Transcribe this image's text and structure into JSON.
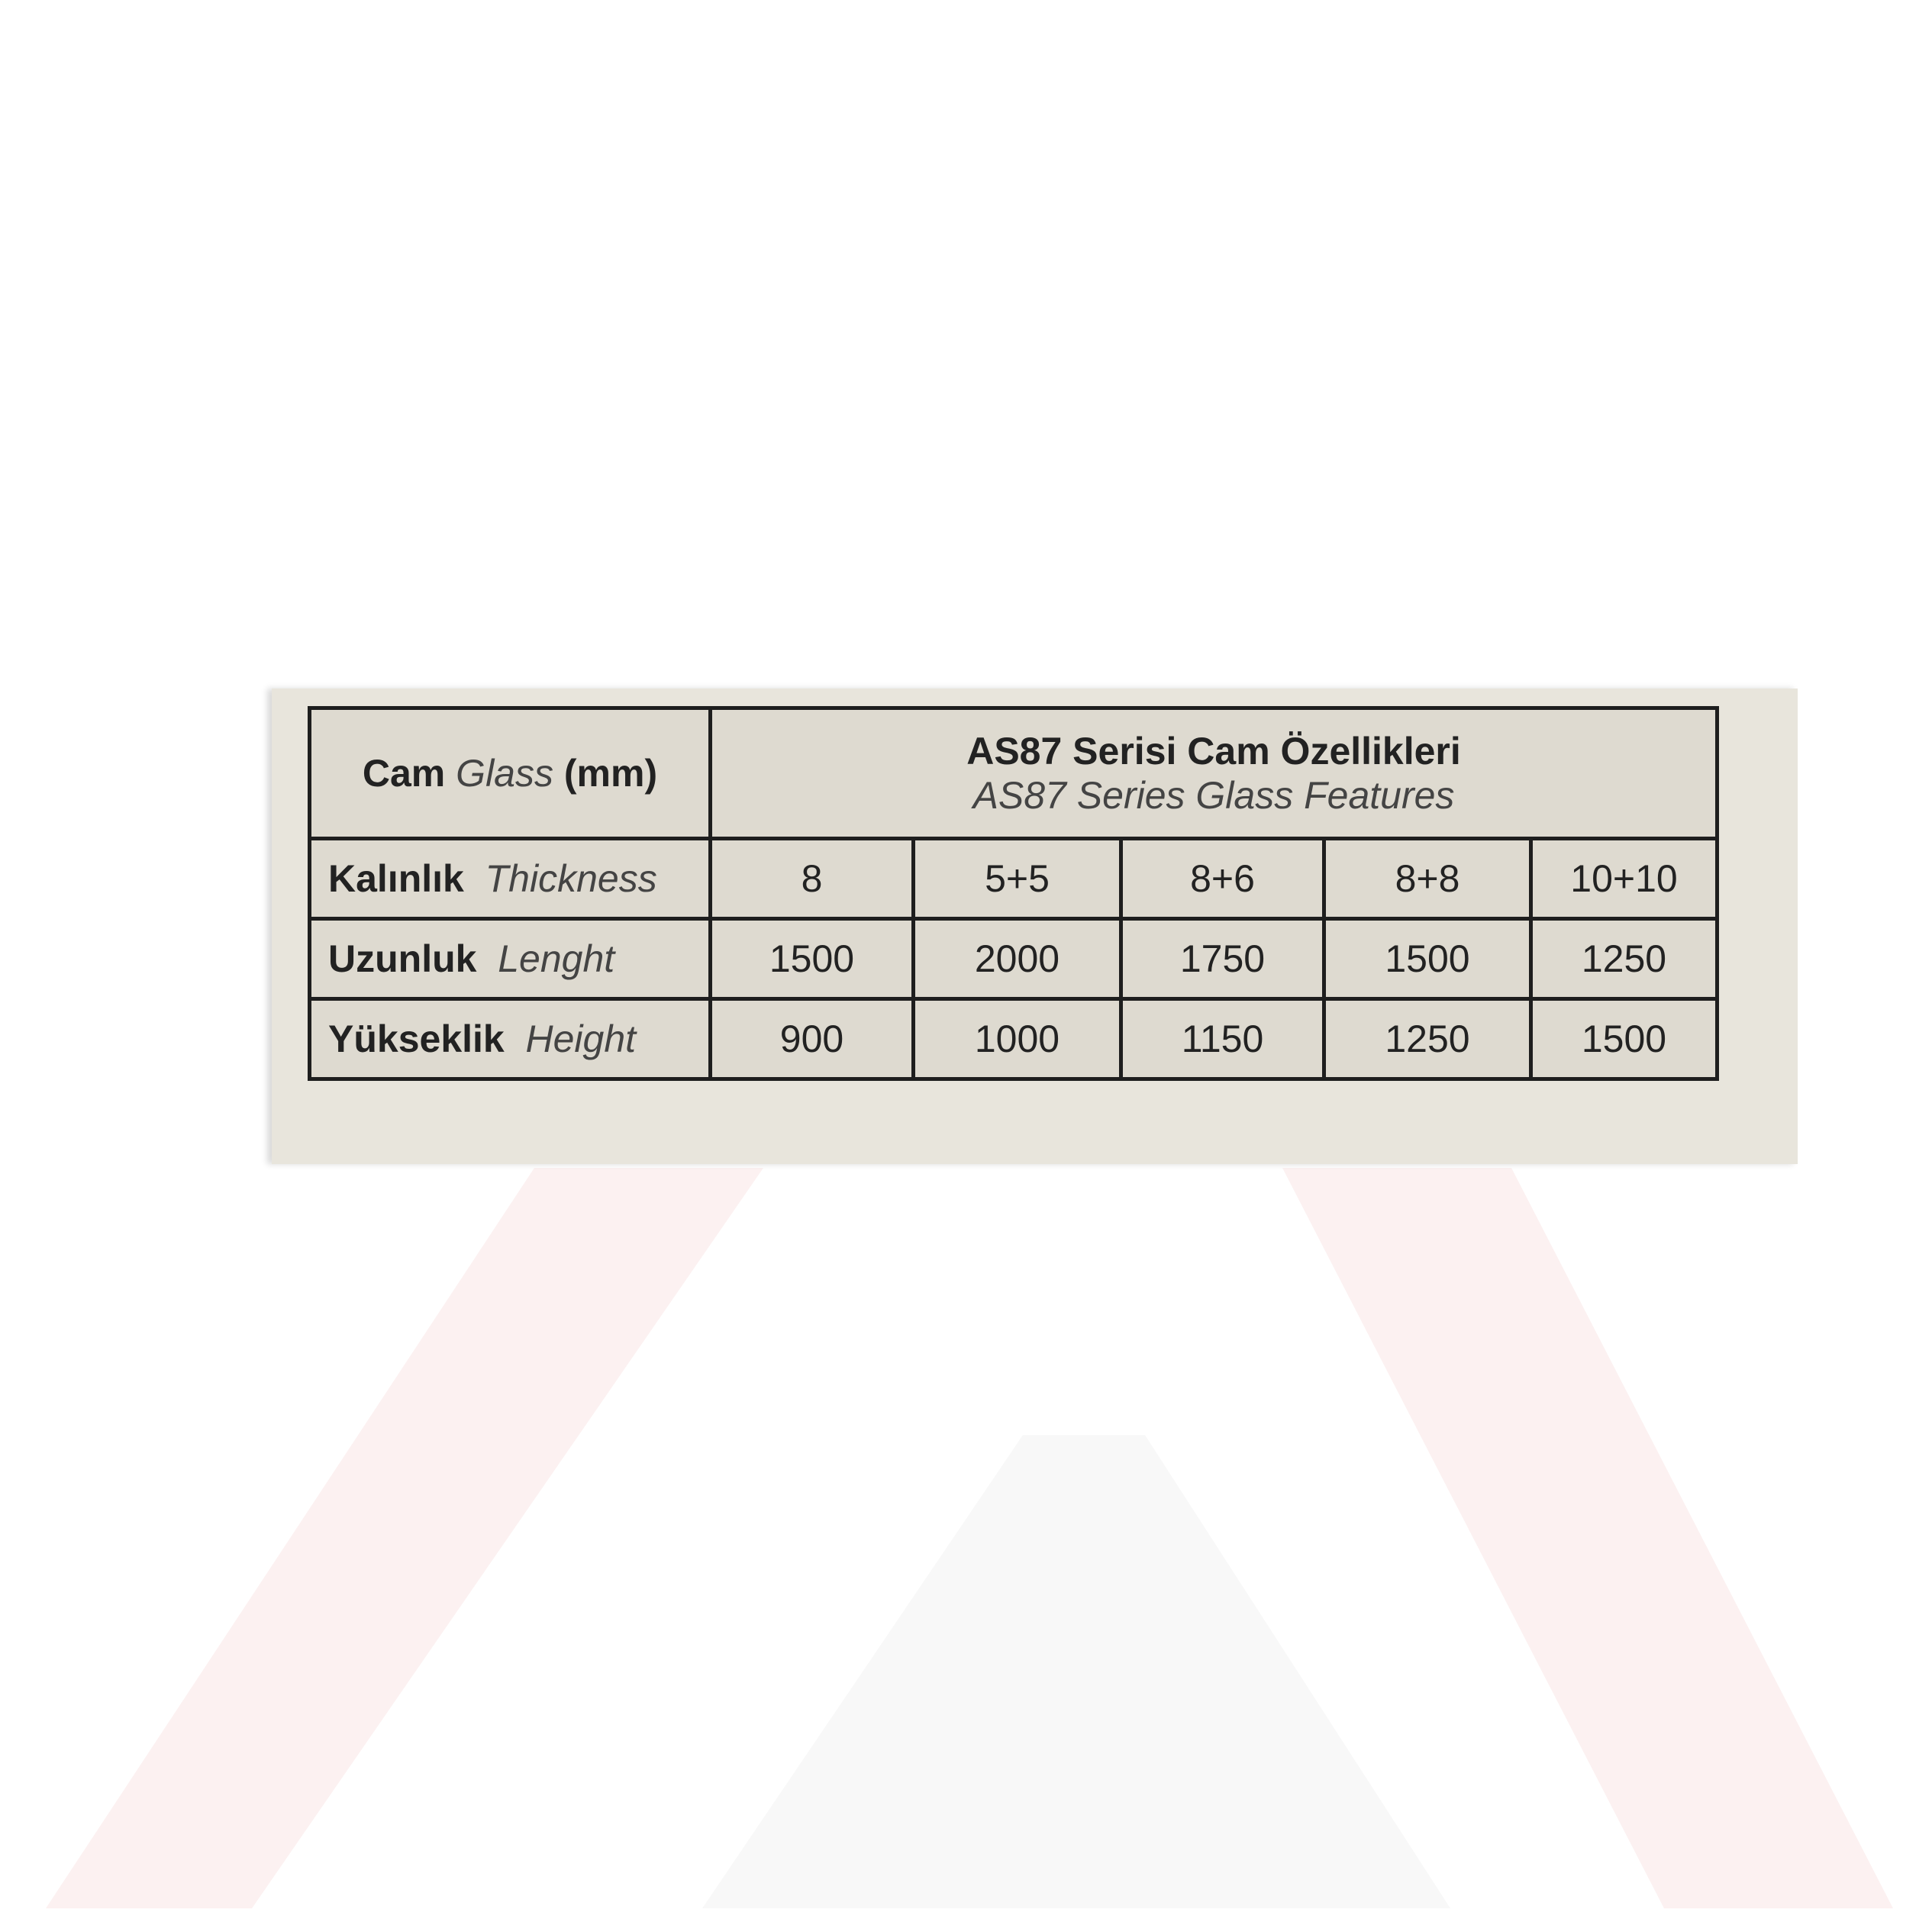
{
  "header": {
    "label_tr": "Cam",
    "label_en": "Glass",
    "unit": "(mm)",
    "title_tr": "AS87 Serisi Cam Özellikleri",
    "title_en": "AS87 Series Glass Features"
  },
  "rows": [
    {
      "label_tr": "Kalınlık",
      "label_en": "Thickness",
      "values": [
        "8",
        "5+5",
        "8+6",
        "8+8",
        "10+10"
      ]
    },
    {
      "label_tr": "Uzunluk",
      "label_en": "Lenght",
      "values": [
        "1500",
        "2000",
        "1750",
        "1500",
        "1250"
      ]
    },
    {
      "label_tr": "Yükseklik",
      "label_en": "Height",
      "values": [
        "900",
        "1000",
        "1150",
        "1250",
        "1500"
      ]
    }
  ],
  "colors": {
    "panel": "#e8e5dc",
    "table": "#dedad0",
    "border": "#1e1e1e",
    "watermark": "#fbeeee"
  }
}
